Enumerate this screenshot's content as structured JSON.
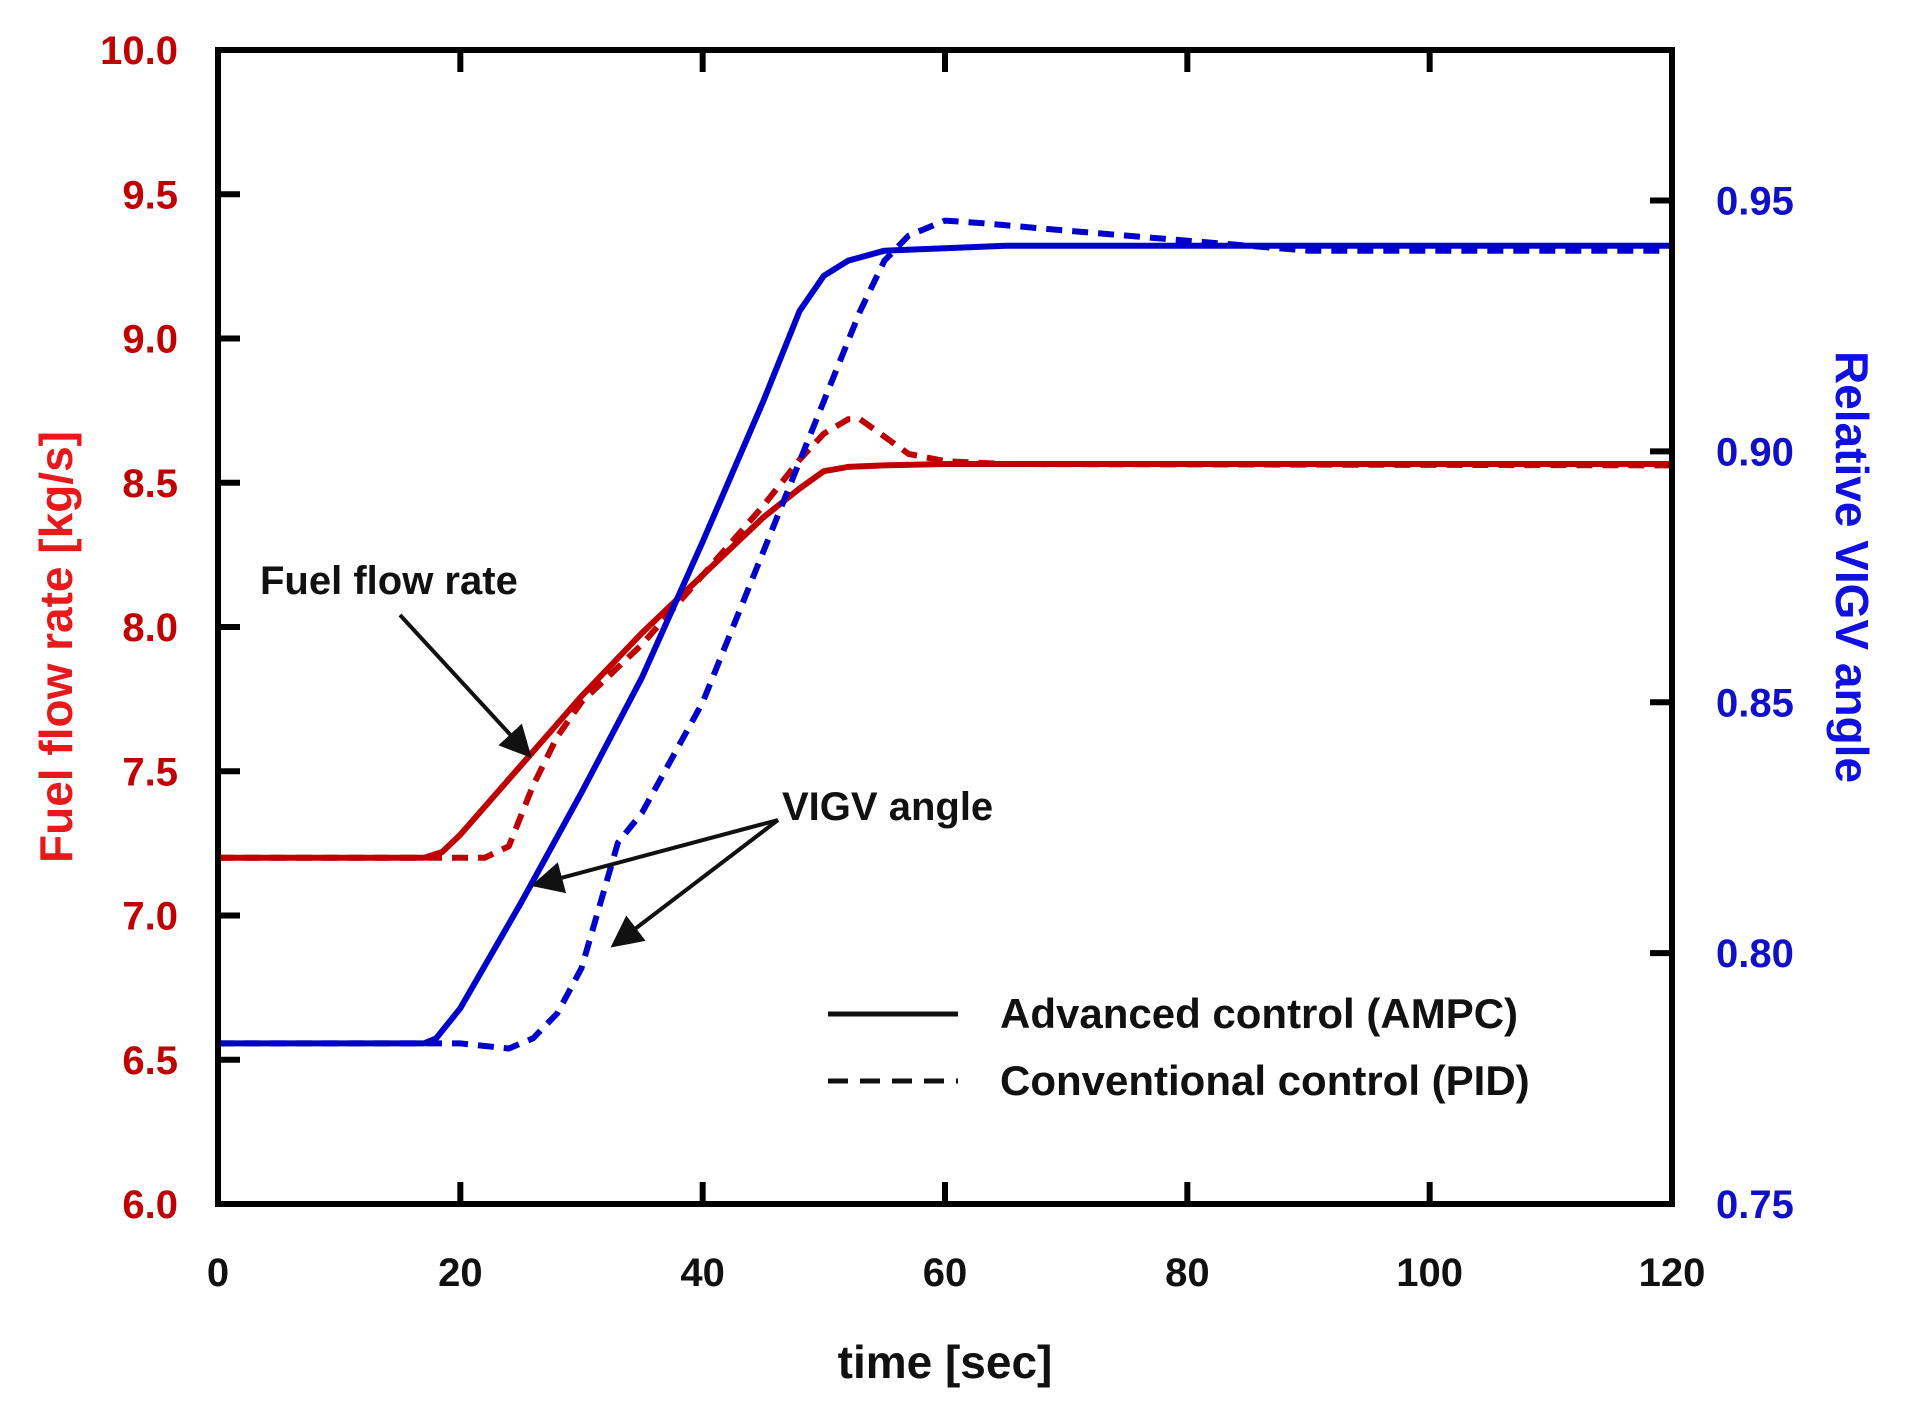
{
  "chart_data": {
    "type": "line",
    "x_label": "time [sec]",
    "y_left_label": "Fuel flow rate [kg/s]",
    "y_right_label": "Relative VIGV angle",
    "xlim": [
      0,
      120
    ],
    "y_left_lim": [
      6.0,
      10.0
    ],
    "y_right_lim": [
      0.75,
      0.98
    ],
    "x_ticks": [
      0,
      20,
      40,
      60,
      80,
      100,
      120
    ],
    "x_tick_labels": [
      "0",
      "20",
      "40",
      "60",
      "80",
      "100",
      "120"
    ],
    "y_left_ticks": [
      6.0,
      6.5,
      7.0,
      7.5,
      8.0,
      8.5,
      9.0,
      9.5,
      10.0
    ],
    "y_left_tick_labels": [
      "6.0",
      "6.5",
      "7.0",
      "7.5",
      "8.0",
      "8.5",
      "9.0",
      "9.5",
      "10.0"
    ],
    "y_right_ticks": [
      0.75,
      0.8,
      0.85,
      0.9,
      0.95
    ],
    "y_right_tick_labels": [
      "0.75",
      "0.80",
      "0.85",
      "0.90",
      "0.95"
    ],
    "series": [
      {
        "name": "Fuel flow rate - Advanced control (AMPC)",
        "axis": "left",
        "color": "#c00000",
        "style": "solid",
        "x": [
          0,
          17,
          18.5,
          20,
          25,
          30,
          35,
          40,
          45,
          48,
          50,
          52,
          55,
          60,
          70,
          120
        ],
        "y": [
          7.2,
          7.2,
          7.22,
          7.28,
          7.52,
          7.76,
          7.98,
          8.18,
          8.38,
          8.48,
          8.54,
          8.555,
          8.56,
          8.565,
          8.565,
          8.565
        ]
      },
      {
        "name": "Fuel flow rate - Conventional control (PID)",
        "axis": "left",
        "color": "#c00000",
        "style": "dashed",
        "x": [
          0,
          20,
          22,
          24,
          26,
          28,
          30,
          32,
          35,
          40,
          45,
          48,
          50,
          52,
          53,
          55,
          57,
          60,
          65,
          120
        ],
        "y": [
          7.2,
          7.2,
          7.2,
          7.24,
          7.45,
          7.62,
          7.74,
          7.82,
          7.94,
          8.18,
          8.42,
          8.58,
          8.67,
          8.72,
          8.72,
          8.66,
          8.6,
          8.575,
          8.565,
          8.56
        ]
      },
      {
        "name": "VIGV angle - Advanced control (AMPC)",
        "axis": "right",
        "color": "#0000cc",
        "style": "solid",
        "x": [
          0,
          17,
          18,
          20,
          25,
          30,
          35,
          40,
          45,
          48,
          50,
          52,
          55,
          60,
          65,
          120
        ],
        "y": [
          0.782,
          0.782,
          0.783,
          0.789,
          0.81,
          0.832,
          0.855,
          0.882,
          0.91,
          0.928,
          0.935,
          0.938,
          0.94,
          0.9405,
          0.941,
          0.941
        ]
      },
      {
        "name": "VIGV angle - Conventional control (PID)",
        "axis": "right",
        "color": "#0000cc",
        "style": "dashed",
        "x": [
          0,
          20,
          24,
          26,
          28,
          30,
          33,
          35,
          40,
          45,
          50,
          53,
          55,
          57,
          60,
          63,
          70,
          80,
          90,
          120
        ],
        "y": [
          0.782,
          0.782,
          0.781,
          0.783,
          0.788,
          0.797,
          0.822,
          0.828,
          0.85,
          0.88,
          0.91,
          0.928,
          0.938,
          0.943,
          0.946,
          0.9455,
          0.944,
          0.942,
          0.94,
          0.94
        ]
      }
    ],
    "annotations": [
      {
        "text": "Fuel flow rate",
        "points_to_x": 26,
        "points_to_y": 7.57,
        "axis": "left"
      },
      {
        "text": "VIGV angle",
        "points_to_x": [
          25,
          32
        ],
        "points_to_y": [
          0.814,
          0.8
        ],
        "axis": "right"
      }
    ],
    "legend": {
      "position": "lower-right",
      "entries": [
        {
          "label": "Advanced control (AMPC)",
          "style": "solid"
        },
        {
          "label": "Conventional control (PID)",
          "style": "dashed"
        }
      ]
    }
  }
}
